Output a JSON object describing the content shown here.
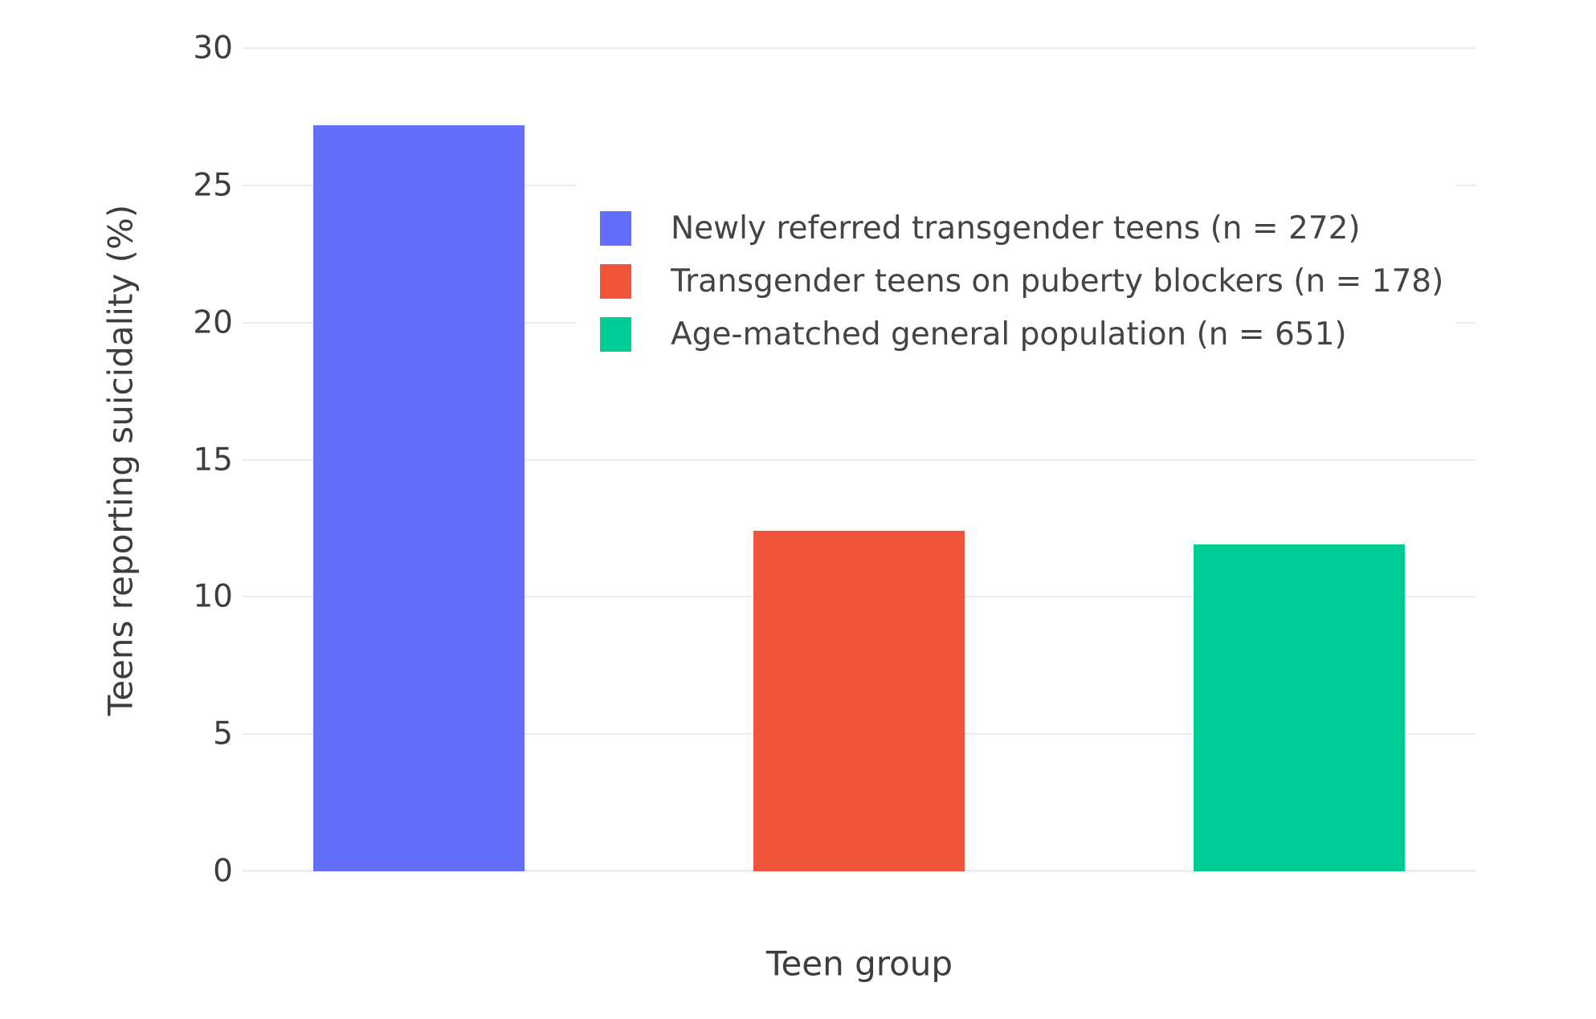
{
  "chart_data": {
    "type": "bar",
    "title": "",
    "xlabel": "Teen group",
    "ylabel": "Teens reporting suicidality (%)",
    "categories": [
      "Newly referred transgender teens (n = 272)",
      "Transgender teens on puberty blockers (n = 178)",
      "Age-matched general population (n = 651)"
    ],
    "values": [
      27.2,
      12.4,
      11.9
    ],
    "colors": [
      "#636efa",
      "#ef553b",
      "#00cc96"
    ],
    "ylim": [
      0,
      30
    ],
    "yticks": [
      0,
      5,
      10,
      15,
      20,
      25,
      30
    ],
    "grid": true,
    "legend_position": "inside-top-right",
    "background_color": "#ffffff",
    "gridline_color": "#e8edf6",
    "text_color": "#444444"
  }
}
